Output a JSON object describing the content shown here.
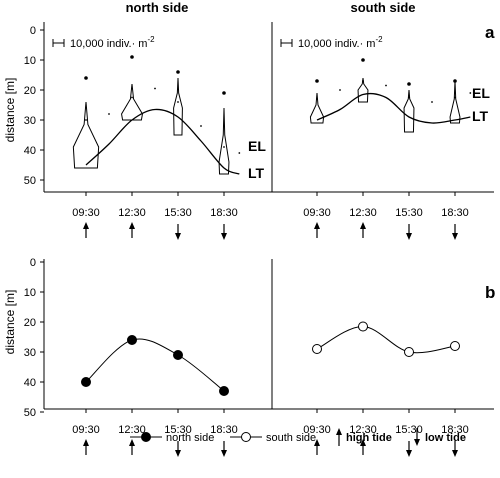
{
  "headers": {
    "north": "north side",
    "south": "south side"
  },
  "panel_labels": {
    "a": "a",
    "b": "b"
  },
  "ylabel": "distance [m]",
  "yticks": [
    "0",
    "10",
    "20",
    "30",
    "40",
    "50"
  ],
  "xticks": [
    "09:30",
    "12:30",
    "15:30",
    "18:30"
  ],
  "scale_bar_label": "10,000  indiv.· m",
  "scale_bar_exponent": "-2",
  "curve_labels": {
    "el": "EL",
    "lt": "LT"
  },
  "tides": [
    "high",
    "high",
    "low",
    "low"
  ],
  "legend": {
    "north": "north side",
    "south": "south side",
    "high_tide": "high tide",
    "low_tide": "low tide"
  },
  "chart_data": [
    {
      "panel": "a",
      "type": "line",
      "ylabel": "distance [m]",
      "ylim": [
        55,
        0
      ],
      "categories": [
        "09:30",
        "12:30",
        "15:30",
        "18:30"
      ],
      "sides": [
        {
          "name": "north side",
          "LT": {
            "x": [
              9.5,
              11,
              12.5,
              14,
              15.5,
              17,
              18.5,
              19.5
            ],
            "y": [
              45,
              38,
              30,
              26.5,
              29,
              37,
              46,
              48
            ]
          },
          "EL": {
            "x": [
              9.5,
              11,
              12.5,
              14,
              15.5,
              17,
              18.5,
              19.5
            ],
            "y": [
              30,
              28,
              22.5,
              19.5,
              24,
              32,
              39,
              41
            ]
          },
          "distributions": [
            {
              "time": "09:30",
              "top": 24,
              "bottom": 46,
              "mode": 39,
              "max_density": 11500,
              "outlier": 16
            },
            {
              "time": "12:30",
              "top": 18,
              "bottom": 30,
              "mode": 28,
              "max_density": 9500,
              "outlier": 9
            },
            {
              "time": "15:30",
              "top": 16,
              "bottom": 35,
              "mode": 26,
              "max_density": 4000,
              "outlier": 14
            },
            {
              "time": "18:30",
              "top": 26,
              "bottom": 48,
              "mode": 44,
              "max_density": 4500,
              "outlier": 21
            }
          ]
        },
        {
          "name": "south side",
          "LT": {
            "x": [
              9.5,
              11,
              12.5,
              14,
              15.5,
              17,
              18.5,
              19.5
            ],
            "y": [
              30,
              26.5,
              21.5,
              22.5,
              29,
              31,
              30,
              29
            ]
          },
          "EL": {
            "x": [
              9.5,
              11,
              12.5,
              14,
              15.5,
              17,
              18.5,
              19.5
            ],
            "y": [
              23,
              20,
              17,
              18.5,
              22.5,
              24,
              22.5,
              21
            ]
          },
          "distributions": [
            {
              "time": "09:30",
              "top": 21,
              "bottom": 31,
              "mode": 29,
              "max_density": 6000,
              "outlier": 17
            },
            {
              "time": "12:30",
              "top": 16,
              "bottom": 24,
              "mode": 20,
              "max_density": 4500,
              "outlier": 10
            },
            {
              "time": "15:30",
              "top": 20,
              "bottom": 34,
              "mode": 26,
              "max_density": 4500,
              "outlier": 18
            },
            {
              "time": "18:30",
              "top": 17,
              "bottom": 31,
              "mode": 29,
              "max_density": 4500,
              "outlier": 17
            }
          ]
        }
      ]
    },
    {
      "panel": "b",
      "type": "line",
      "ylabel": "distance [m]",
      "ylim": [
        55,
        0
      ],
      "categories": [
        "09:30",
        "12:30",
        "15:30",
        "18:30"
      ],
      "series": [
        {
          "name": "north side",
          "values": [
            40,
            26,
            31,
            43
          ],
          "marker": "filled"
        },
        {
          "name": "south side",
          "values": [
            29,
            21.5,
            30,
            28
          ],
          "marker": "open"
        }
      ]
    }
  ]
}
